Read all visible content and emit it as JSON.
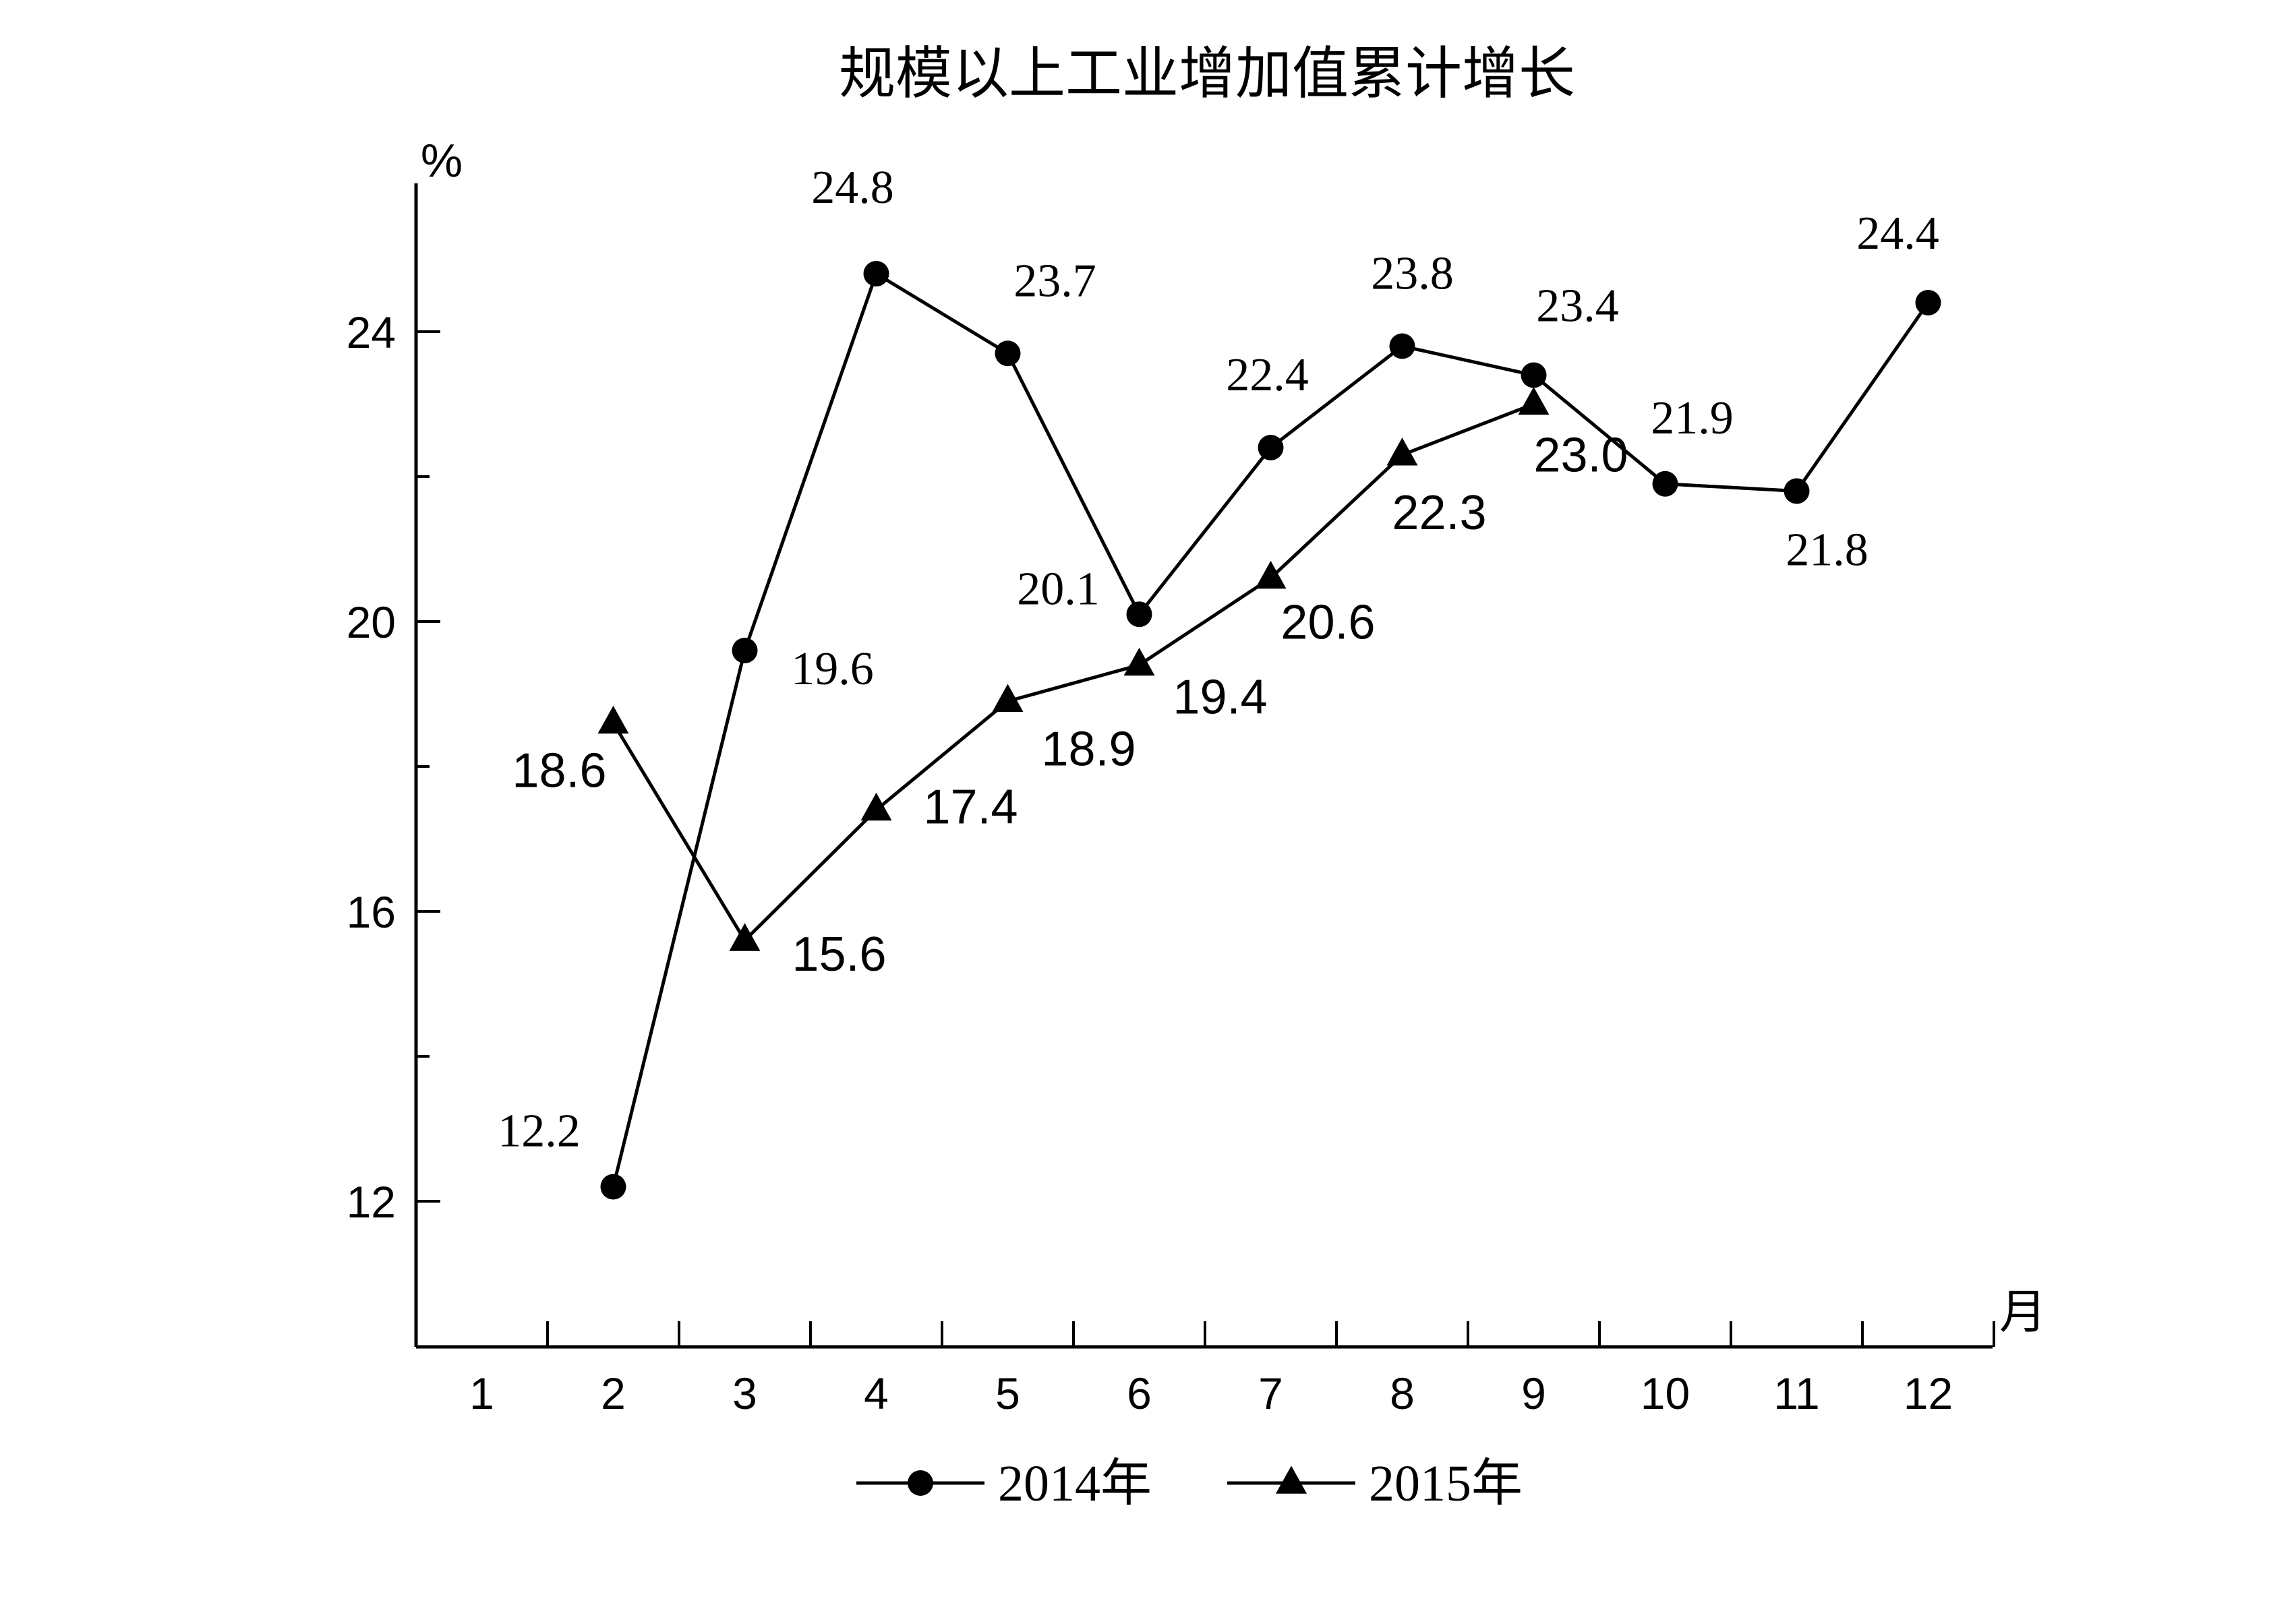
{
  "chart_data": {
    "type": "line",
    "title": "规模以上工业增加值累计增长",
    "ylabel": "%",
    "xlabel": "月",
    "ylim": [
      10,
      26
    ],
    "yticks_major": [
      12,
      16,
      20,
      24
    ],
    "yticks_minor": [
      14,
      18,
      22
    ],
    "categories": [
      "1",
      "2",
      "3",
      "4",
      "5",
      "6",
      "7",
      "8",
      "9",
      "10",
      "11",
      "12"
    ],
    "legend_position": "bottom",
    "series": [
      {
        "name": "2014年",
        "marker": "circle",
        "color": "#000000",
        "x": [
          2,
          3,
          4,
          5,
          6,
          7,
          8,
          9,
          10,
          11,
          12
        ],
        "values": [
          12.2,
          19.6,
          24.8,
          23.7,
          20.1,
          22.4,
          23.8,
          23.4,
          21.9,
          21.8,
          24.4
        ],
        "labels": [
          "12.2",
          "19.6",
          "24.8",
          "23.7",
          "20.1",
          "22.4",
          "23.8",
          "23.4",
          "21.9",
          "21.8",
          "24.4"
        ]
      },
      {
        "name": "2015年",
        "marker": "triangle",
        "color": "#000000",
        "x": [
          2,
          3,
          4,
          5,
          6,
          7,
          8,
          9
        ],
        "values": [
          18.6,
          15.6,
          17.4,
          18.9,
          19.4,
          20.6,
          22.3,
          23.0
        ],
        "labels": [
          "18.6",
          "15.6",
          "17.4",
          "18.9",
          "19.4",
          "20.6",
          "22.3",
          "23.0"
        ]
      }
    ]
  }
}
